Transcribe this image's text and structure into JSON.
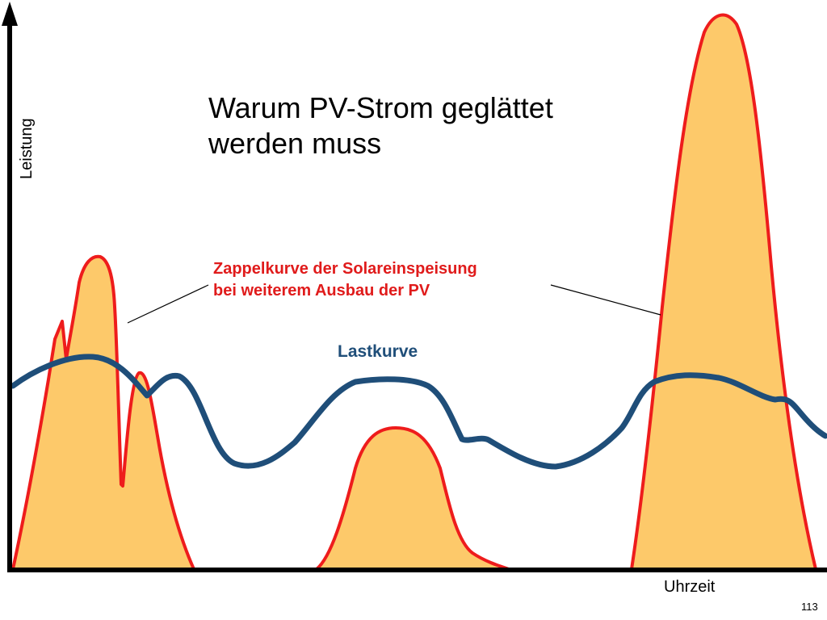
{
  "title_line1": "Warum PV-Strom geglättet",
  "title_line2": "werden muss",
  "pv_label_line1": "Zappelkurve der Solareinspeisung",
  "pv_label_line2": "bei weiterem Ausbau der PV",
  "load_label": "Lastkurve",
  "y_axis_label": "Leistung",
  "x_axis_label": "Uhrzeit",
  "page_number": "113",
  "colors": {
    "pv_fill": "#fdc96a",
    "pv_stroke": "#ee1c1c",
    "load_stroke": "#1f4e79",
    "axis": "#000000"
  }
}
